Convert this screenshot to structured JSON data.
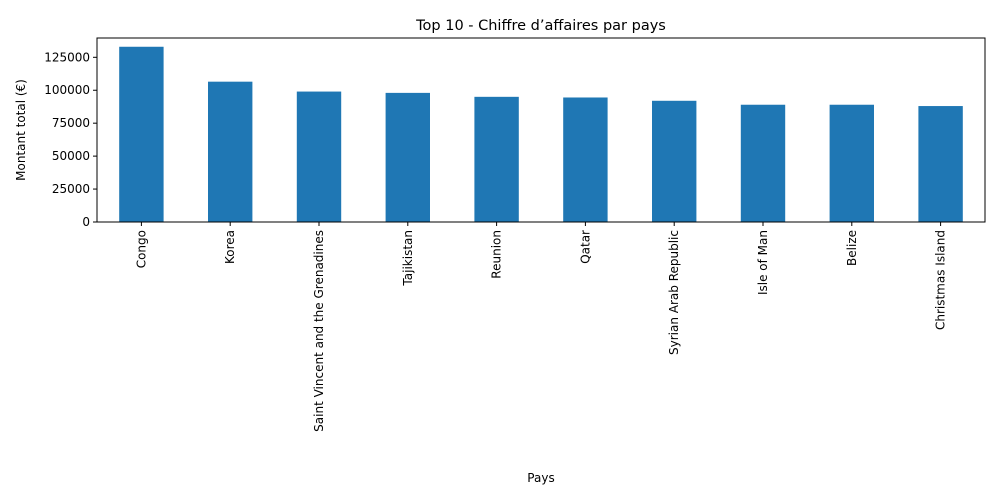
{
  "chart_data": {
    "type": "bar",
    "title": "Top 10 - Chiffre d’affaires par pays",
    "xlabel": "Pays",
    "ylabel": "Montant total (€)",
    "categories": [
      "Congo",
      "Korea",
      "Saint Vincent and the Grenadines",
      "Tajikistan",
      "Reunion",
      "Qatar",
      "Syrian Arab Republic",
      "Isle of Man",
      "Belize",
      "Christmas Island"
    ],
    "values": [
      133000,
      106500,
      99000,
      98000,
      95000,
      94500,
      92000,
      89000,
      89000,
      88000
    ],
    "yticks": [
      0,
      25000,
      50000,
      75000,
      100000,
      125000
    ],
    "ylim": [
      0,
      139650
    ],
    "bar_color": "#1f77b4",
    "grid": false,
    "legend": "none"
  }
}
